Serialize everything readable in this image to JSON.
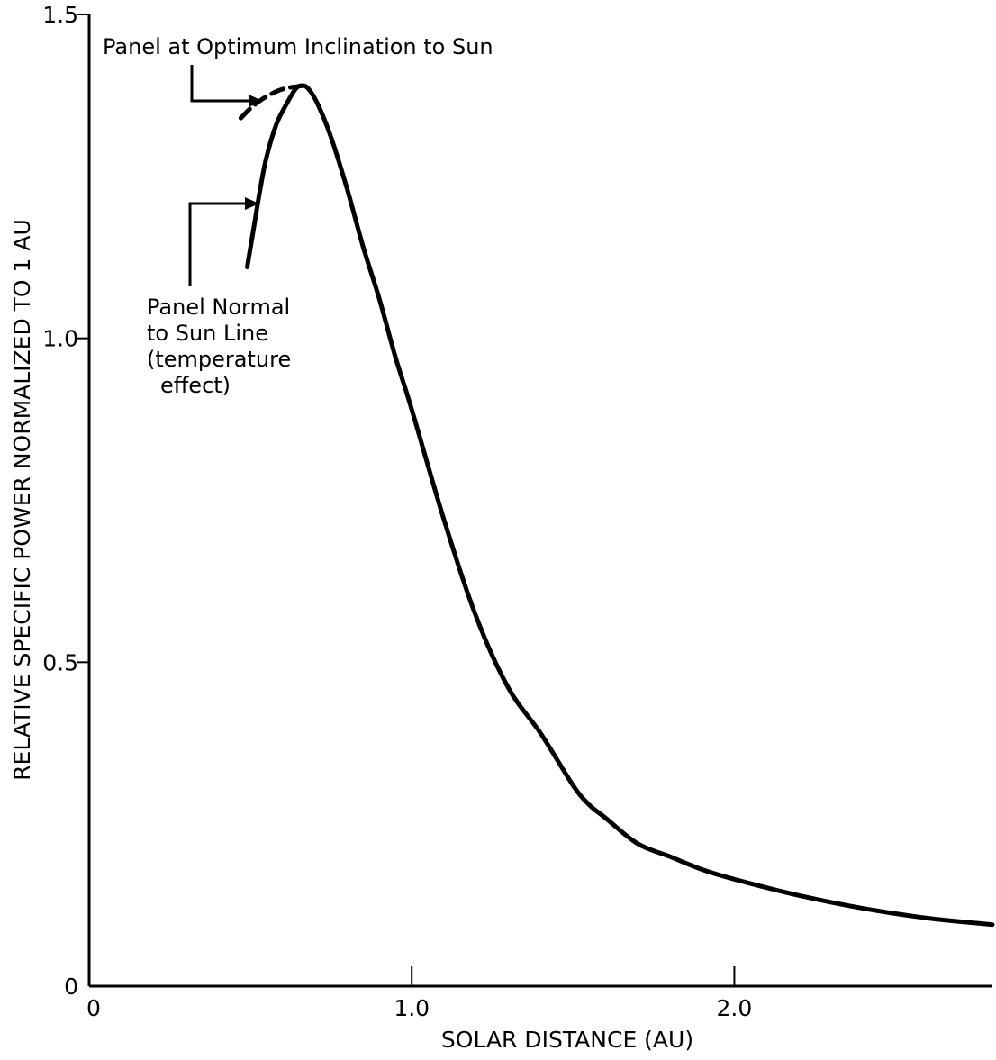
{
  "chart_data": {
    "type": "line",
    "xlabel": "SOLAR DISTANCE (AU)",
    "ylabel": "RELATIVE SPECIFIC POWER NORMALIZED TO 1 AU",
    "xlim": [
      0,
      2.8
    ],
    "ylim": [
      0,
      1.5
    ],
    "xticks": [
      {
        "value": 0,
        "label": "0"
      },
      {
        "value": 1.0,
        "label": "1.0"
      },
      {
        "value": 2.0,
        "label": "2.0"
      }
    ],
    "yticks": [
      {
        "value": 0,
        "label": "0"
      },
      {
        "value": 0.5,
        "label": "0.5"
      },
      {
        "value": 1.0,
        "label": "1.0"
      },
      {
        "value": 1.5,
        "label": "1.5"
      }
    ],
    "grid": false,
    "series": [
      {
        "style": "solid",
        "x": [
          0.49,
          0.51,
          0.53,
          0.55,
          0.58,
          0.61,
          0.64,
          0.66,
          0.68,
          0.71,
          0.75,
          0.8,
          0.85,
          0.9,
          0.95,
          1.0,
          1.1,
          1.2,
          1.3,
          1.4,
          1.5,
          1.55,
          1.6,
          1.7,
          1.8,
          1.9,
          2.0,
          2.2,
          2.4,
          2.6,
          2.8
        ],
        "y": [
          1.11,
          1.17,
          1.23,
          1.28,
          1.33,
          1.36,
          1.385,
          1.39,
          1.385,
          1.36,
          1.31,
          1.23,
          1.14,
          1.06,
          0.97,
          0.89,
          0.72,
          0.57,
          0.46,
          0.39,
          0.31,
          0.28,
          0.26,
          0.22,
          0.2,
          0.18,
          0.165,
          0.14,
          0.12,
          0.105,
          0.095
        ]
      },
      {
        "style": "dashed",
        "x": [
          0.47,
          0.5,
          0.53,
          0.56,
          0.59,
          0.62,
          0.65,
          0.66
        ],
        "y": [
          1.34,
          1.355,
          1.367,
          1.376,
          1.383,
          1.387,
          1.389,
          1.39
        ]
      }
    ],
    "annotations": [
      {
        "text_lines": [
          "Panel at Optimum Inclination to Sun"
        ],
        "target": "dashed"
      },
      {
        "text_lines": [
          "Panel Normal",
          "to Sun Line",
          "(temperature",
          "effect)"
        ],
        "target": "solid"
      }
    ]
  }
}
